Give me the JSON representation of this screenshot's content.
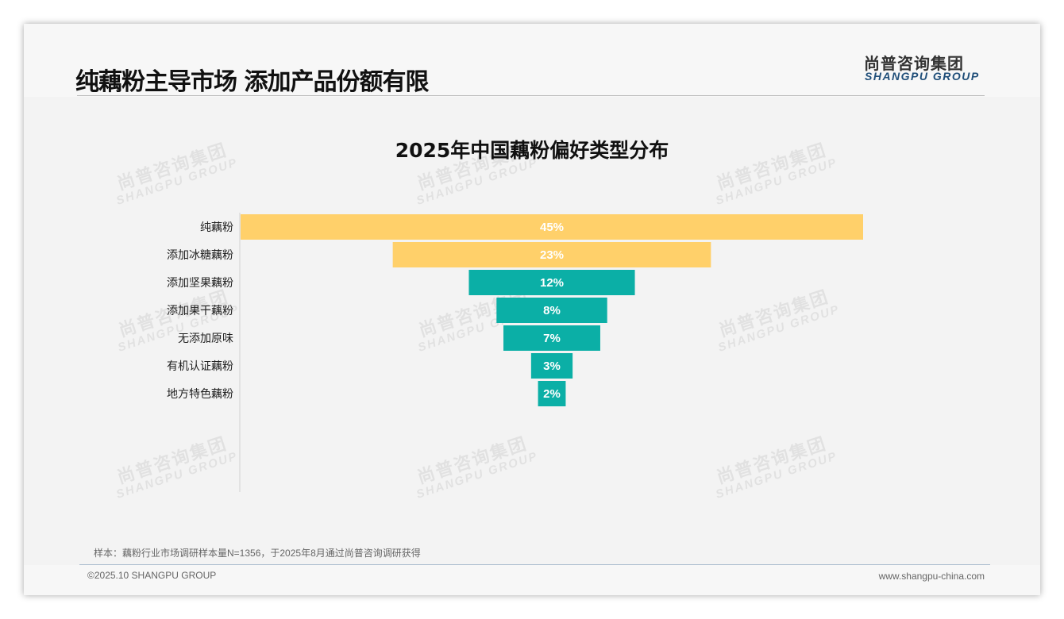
{
  "header": {
    "title": "纯藕粉主导市场 添加产品份额有限",
    "logo_cn": "尚普咨询集团",
    "logo_en": "SHANGPU GROUP"
  },
  "watermark": {
    "cn": "尚普咨询集团",
    "en": "SHANGPU GROUP"
  },
  "chart_data": {
    "type": "bar",
    "subtype": "funnel",
    "title": "2025年中国藕粉偏好类型分布",
    "categories": [
      "纯藕粉",
      "添加冰糖藕粉",
      "添加坚果藕粉",
      "添加果干藕粉",
      "无添加原味",
      "有机认证藕粉",
      "地方特色藕粉"
    ],
    "values": [
      45,
      23,
      12,
      8,
      7,
      3,
      2
    ],
    "labels": [
      "45%",
      "23%",
      "12%",
      "8%",
      "7%",
      "3%",
      "2%"
    ],
    "colors": [
      "#FFD06A",
      "#FFD06A",
      "#0BAFA6",
      "#0BAFA6",
      "#0BAFA6",
      "#0BAFA6",
      "#0BAFA6"
    ],
    "unit": "%"
  },
  "footer": {
    "note": "样本：藕粉行业市场调研样本量N=1356，于2025年8月通过尚普咨询调研获得",
    "copyright": "©2025.10 SHANGPU GROUP",
    "url": "www.shangpu-china.com"
  }
}
